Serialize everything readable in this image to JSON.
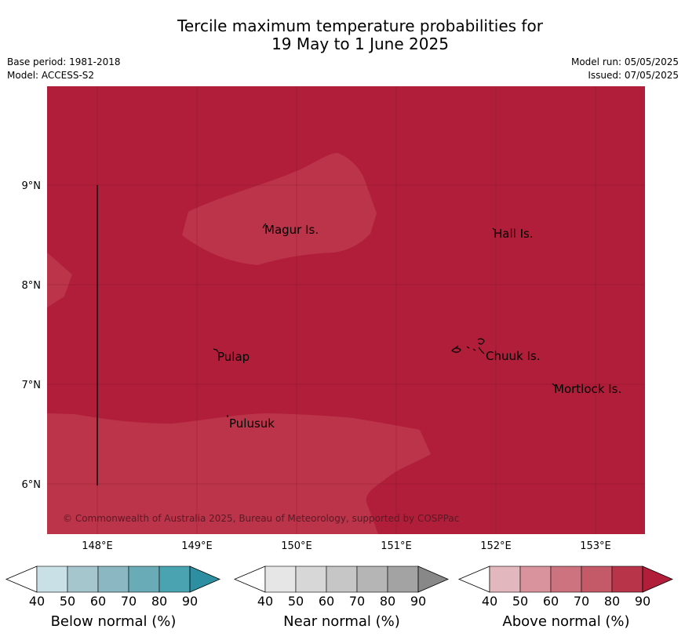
{
  "title": {
    "line1": "Tercile maximum temperature probabilities for",
    "line2": "19 May to 1 June 2025"
  },
  "meta": {
    "base_period": "Base period: 1981-2018",
    "model": "Model: ACCESS-S2",
    "model_run": "Model run: 05/05/2025",
    "issued": "Issued: 07/05/2025"
  },
  "map": {
    "lon_ticks": [
      "148°E",
      "149°E",
      "150°E",
      "151°E",
      "152°E",
      "153°E"
    ],
    "lat_ticks": [
      "9°N",
      "8°N",
      "7°N",
      "6°N"
    ],
    "places": [
      "Magur Is.",
      "Hall Is.",
      "Pulap",
      "Chuuk Is.",
      "Mortlock Is.",
      "Pulusuk"
    ],
    "copyright": "© Commonwealth of Australia 2025, Bureau of Meteorology, supported by COSPPac",
    "colors": {
      "above_80_90": "#b01e3a",
      "above_70_80": "#bc3449",
      "above_60_70": "#c04356"
    }
  },
  "legends": [
    {
      "label": "Below normal (%)",
      "ticks": [
        "40",
        "50",
        "60",
        "70",
        "80",
        "90"
      ],
      "colors": [
        "#ffffff",
        "#c8e0e6",
        "#a5c6cd",
        "#8ab7c2",
        "#6aabb8",
        "#4aa3b1",
        "#2e8fa3"
      ]
    },
    {
      "label": "Near normal (%)",
      "ticks": [
        "40",
        "50",
        "60",
        "70",
        "80",
        "90"
      ],
      "colors": [
        "#ffffff",
        "#e6e6e6",
        "#d7d7d7",
        "#c6c6c6",
        "#b5b5b5",
        "#a3a3a3",
        "#888888"
      ]
    },
    {
      "label": "Above normal (%)",
      "ticks": [
        "40",
        "50",
        "60",
        "70",
        "80",
        "90"
      ],
      "colors": [
        "#ffffff",
        "#e2b7bd",
        "#d8939d",
        "#cc737f",
        "#c45a68",
        "#b83449",
        "#b01e3a"
      ]
    }
  ]
}
